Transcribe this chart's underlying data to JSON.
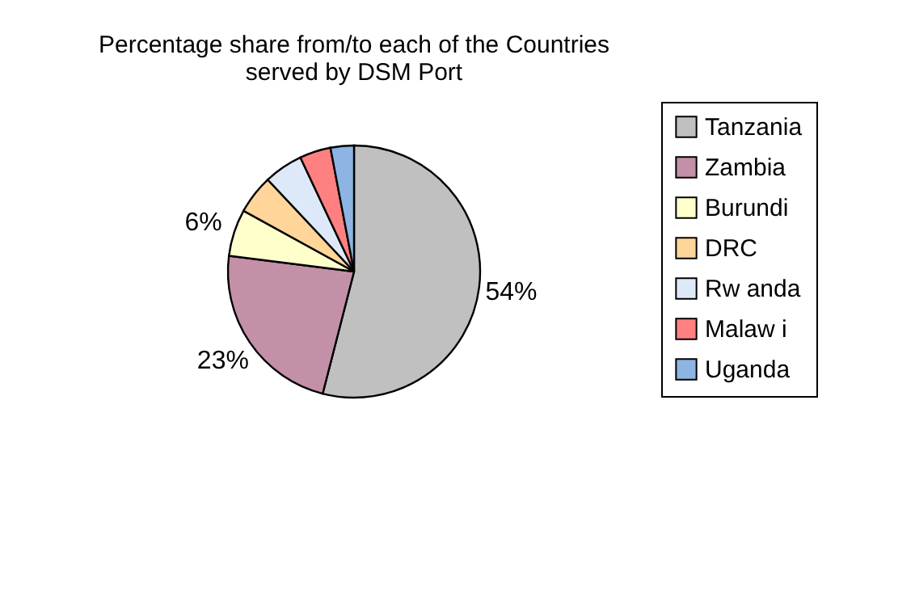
{
  "chart_data": {
    "type": "pie",
    "title": "Percentage share from/to each of the Countries\nserved by DSM Port",
    "categories": [
      "Tanzania",
      "Zambia",
      "Burundi",
      "DRC",
      "Rw anda",
      "Malaw i",
      "Uganda"
    ],
    "values": [
      54,
      23,
      6,
      5,
      5,
      4,
      3
    ],
    "colors": [
      "#c0c0c0",
      "#c390a8",
      "#ffffcc",
      "#ffd59a",
      "#dde9f8",
      "#ff8080",
      "#8db4e2"
    ],
    "value_labels": [
      "54%",
      "23%",
      "6%",
      null,
      null,
      null,
      null
    ],
    "legend": "right"
  }
}
